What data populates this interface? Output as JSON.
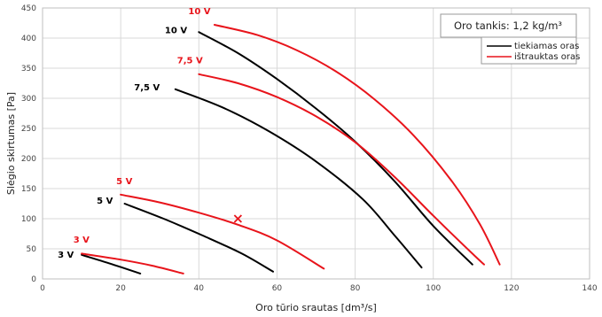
{
  "chart_data": {
    "type": "line",
    "xlabel": "Oro tūrio srautas [dm³/s]",
    "ylabel": "Slėgio skirtumas [Pa]",
    "xlim": [
      0,
      140
    ],
    "ylim": [
      0,
      450
    ],
    "x_ticks": [
      0,
      20,
      40,
      60,
      80,
      100,
      120,
      140
    ],
    "y_ticks": [
      0,
      50,
      100,
      150,
      200,
      250,
      300,
      350,
      400,
      450
    ],
    "grid": true,
    "legend_position": "top-right",
    "note": "Oro tankis: 1,2 kg/m³",
    "colors": {
      "supply": "#000000",
      "exhaust": "#e8141b"
    },
    "series": [
      {
        "name": "tiekiamas oras",
        "color": "#000000",
        "curves": [
          {
            "label": "3 V",
            "points": [
              [
                10,
                40
              ],
              [
                17,
                26
              ],
              [
                25,
                9
              ]
            ]
          },
          {
            "label": "5 V",
            "points": [
              [
                21,
                125
              ],
              [
                31,
                100
              ],
              [
                41,
                72
              ],
              [
                51,
                42
              ],
              [
                59,
                12
              ]
            ]
          },
          {
            "label": "7,5 V",
            "points": [
              [
                34,
                315
              ],
              [
                46,
                285
              ],
              [
                58,
                245
              ],
              [
                70,
                195
              ],
              [
                82,
                132
              ],
              [
                90,
                73
              ],
              [
                97,
                19
              ]
            ]
          },
          {
            "label": "10 V",
            "points": [
              [
                40,
                410
              ],
              [
                50,
                375
              ],
              [
                60,
                332
              ],
              [
                70,
                283
              ],
              [
                80,
                228
              ],
              [
                90,
                163
              ],
              [
                100,
                88
              ],
              [
                110,
                24
              ]
            ]
          }
        ]
      },
      {
        "name": "ištrauktas oras",
        "color": "#e8141b",
        "curves": [
          {
            "label": "3 V",
            "points": [
              [
                10,
                42
              ],
              [
                20,
                32
              ],
              [
                28,
                22
              ],
              [
                36,
                9
              ]
            ]
          },
          {
            "label": "5 V",
            "points": [
              [
                20,
                140
              ],
              [
                30,
                127
              ],
              [
                40,
                110
              ],
              [
                50,
                90
              ],
              [
                60,
                64
              ],
              [
                72,
                17
              ]
            ]
          },
          {
            "label": "7,5 V",
            "points": [
              [
                40,
                340
              ],
              [
                50,
                325
              ],
              [
                60,
                302
              ],
              [
                70,
                270
              ],
              [
                80,
                227
              ],
              [
                90,
                170
              ],
              [
                100,
                105
              ],
              [
                110,
                42
              ],
              [
                113,
                24
              ]
            ]
          },
          {
            "label": "10 V",
            "points": [
              [
                44,
                422
              ],
              [
                55,
                405
              ],
              [
                65,
                380
              ],
              [
                75,
                345
              ],
              [
                85,
                298
              ],
              [
                95,
                238
              ],
              [
                105,
                160
              ],
              [
                112,
                90
              ],
              [
                117,
                24
              ]
            ]
          }
        ]
      }
    ],
    "labels": [
      {
        "text": "3 V",
        "series": 0,
        "x": 8,
        "y": 35
      },
      {
        "text": "5 V",
        "series": 0,
        "x": 18,
        "y": 125
      },
      {
        "text": "7,5 V",
        "series": 0,
        "x": 30,
        "y": 313
      },
      {
        "text": "10 V",
        "series": 0,
        "x": 37,
        "y": 408
      },
      {
        "text": "3 V",
        "series": 1,
        "x": 12,
        "y": 60
      },
      {
        "text": "5 V",
        "series": 1,
        "x": 23,
        "y": 157
      },
      {
        "text": "7,5 V",
        "series": 1,
        "x": 41,
        "y": 358
      },
      {
        "text": "10 V",
        "series": 1,
        "x": 43,
        "y": 440
      }
    ],
    "marker": {
      "type": "x",
      "x": 50,
      "y": 100,
      "color": "#e8141b"
    }
  }
}
